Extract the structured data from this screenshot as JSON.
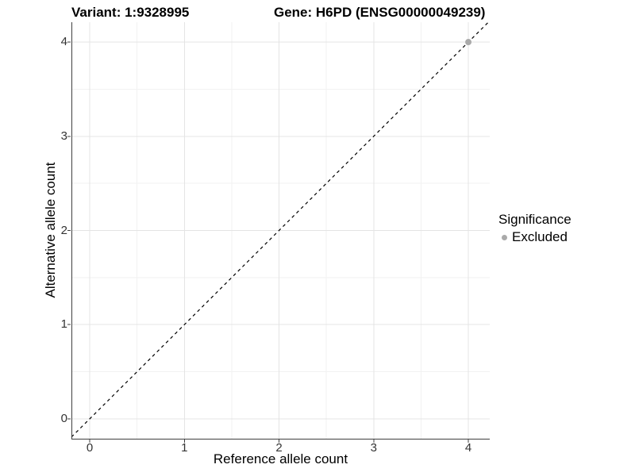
{
  "chart_data": {
    "type": "scatter",
    "title_left": "Variant: 1:9328995",
    "title_right": "Gene: H6PD (ENSG00000049239)",
    "xlabel": "Reference allele count",
    "ylabel": "Alternative allele count",
    "xlim": [
      -0.193,
      4.226
    ],
    "ylim": [
      -0.211,
      4.211
    ],
    "x_ticks": [
      0,
      1,
      2,
      3,
      4
    ],
    "y_ticks": [
      0,
      1,
      2,
      3,
      4
    ],
    "x_minor_ticks": [
      0.5,
      1.5,
      2.5,
      3.5
    ],
    "y_minor_ticks": [
      0.5,
      1.5,
      2.5,
      3.5
    ],
    "grid": "major and minor, light grey on white panel",
    "identity_line": {
      "equation": "y = x",
      "style": "dashed",
      "color": "#000000"
    },
    "series": [
      {
        "name": "Excluded",
        "color": "#aaaaaa",
        "points": [
          {
            "x": 4,
            "y": 4
          }
        ]
      }
    ],
    "legend": {
      "title": "Significance",
      "position": "right",
      "entries": [
        {
          "label": "Excluded",
          "color": "#aaaaaa"
        }
      ]
    }
  },
  "colors": {
    "background": "#ffffff",
    "grid_major": "#e4e4e4",
    "grid_minor": "#f2f2f2",
    "axis_line": "#3f3f3f",
    "tick_mark": "#3f3f3f",
    "tick_label": "#333333",
    "title": "#000000",
    "point": "#aaaaaa"
  }
}
